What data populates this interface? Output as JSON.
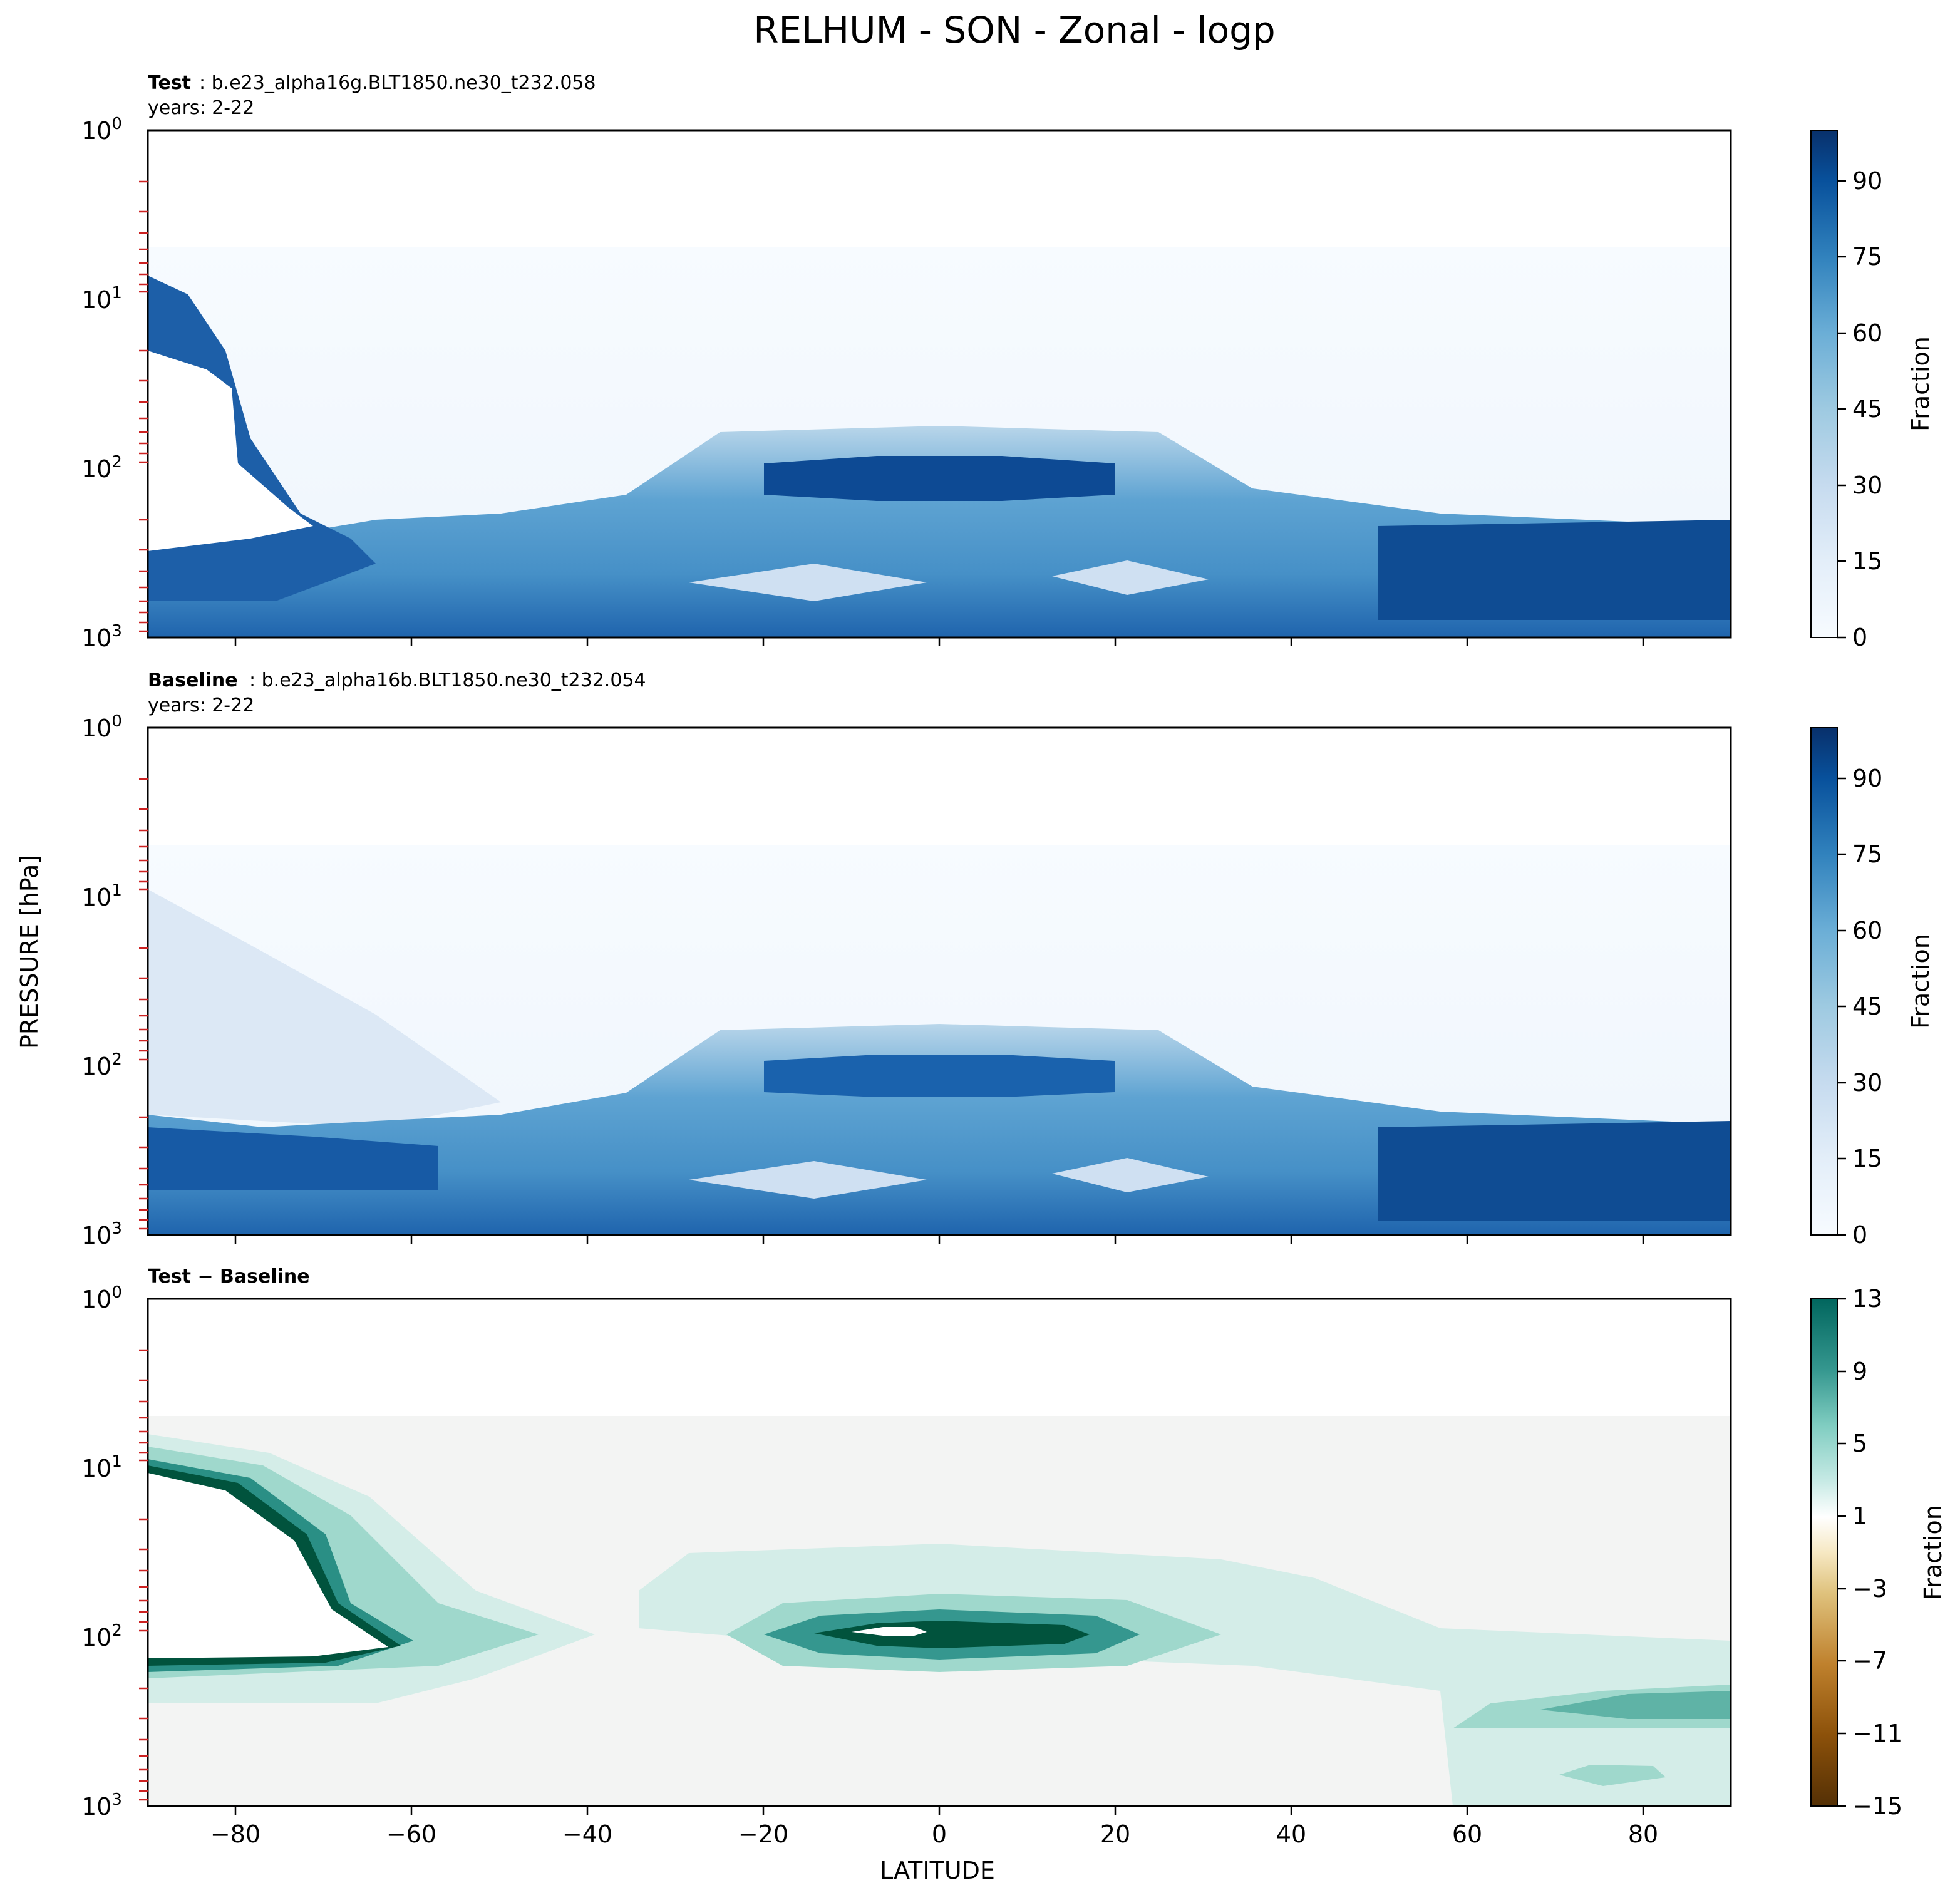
{
  "figure": {
    "title": "RELHUM - SON - Zonal - logp",
    "ylabel": "PRESSURE [hPa]",
    "xlabel": "LATITUDE"
  },
  "chart_data": [
    {
      "type": "heatmap",
      "panel": "test",
      "label_bold": "Test",
      "label_rest": ": b.e23_alpha16g.BLT1850.ne30_t232.058",
      "years": "years: 2-22",
      "xlim": [
        -90,
        90
      ],
      "ylim_hPa": [
        1000,
        1
      ],
      "y_scale": "log",
      "xticks": [
        "−80",
        "−60",
        "−40",
        "−20",
        "0",
        "20",
        "40",
        "60",
        "80"
      ],
      "yticks": [
        "10^0",
        "10^1",
        "10^2",
        "10^3"
      ],
      "colorbar": {
        "label": "Fraction",
        "ticks": [
          "0",
          "15",
          "30",
          "45",
          "60",
          "75",
          "90"
        ],
        "range": [
          0,
          100
        ],
        "colormap": "Blues"
      },
      "features": [
        {
          "desc": "stratosphere near-zero above ~50 hPa",
          "lat": [
            -90,
            90
          ],
          "p_hPa": [
            1,
            50
          ],
          "value": 2
        },
        {
          "desc": "upper tropical moist band",
          "lat": [
            -22,
            22
          ],
          "p_hPa": [
            80,
            130
          ],
          "value": 90
        },
        {
          "desc": "southern polar high values boundary",
          "lat": [
            -90,
            -62
          ],
          "p_hPa": [
            18,
            300
          ],
          "value": 95
        },
        {
          "desc": "southern polar masked region",
          "lat": [
            -90,
            -72
          ],
          "p_hPa": [
            20,
            310
          ],
          "value": null
        },
        {
          "desc": "northern polar lower-troposphere max",
          "lat": [
            60,
            90
          ],
          "p_hPa": [
            250,
            350
          ],
          "value": 95
        },
        {
          "desc": "subtropical dry lower-mid troposphere",
          "lat": [
            -30,
            -10
          ],
          "p_hPa": [
            350,
            600
          ],
          "value": 22
        }
      ]
    },
    {
      "type": "heatmap",
      "panel": "baseline",
      "label_bold": "Baseline",
      "label_rest": ": b.e23_alpha16b.BLT1850.ne30_t232.054",
      "years": "years: 2-22",
      "xlim": [
        -90,
        90
      ],
      "ylim_hPa": [
        1000,
        1
      ],
      "y_scale": "log",
      "xticks": [
        "−80",
        "−60",
        "−40",
        "−20",
        "0",
        "20",
        "40",
        "60",
        "80"
      ],
      "yticks": [
        "10^0",
        "10^1",
        "10^2",
        "10^3"
      ],
      "colorbar": {
        "label": "Fraction",
        "ticks": [
          "0",
          "15",
          "30",
          "45",
          "60",
          "75",
          "90"
        ],
        "range": [
          0,
          100
        ],
        "colormap": "Blues"
      },
      "features": [
        {
          "desc": "stratosphere near-zero above ~50 hPa",
          "lat": [
            -90,
            90
          ],
          "p_hPa": [
            1,
            50
          ],
          "value": 2
        },
        {
          "desc": "upper tropical moist band",
          "lat": [
            -22,
            22
          ],
          "p_hPa": [
            80,
            130
          ],
          "value": 80
        },
        {
          "desc": "southern polar lower troposphere",
          "lat": [
            -90,
            -60
          ],
          "p_hPa": [
            250,
            400
          ],
          "value": 90
        },
        {
          "desc": "northern polar lower-troposphere max",
          "lat": [
            60,
            90
          ],
          "p_hPa": [
            250,
            350
          ],
          "value": 95
        },
        {
          "desc": "subtropical dry lower-mid troposphere",
          "lat": [
            -30,
            -10
          ],
          "p_hPa": [
            350,
            600
          ],
          "value": 22
        }
      ]
    },
    {
      "type": "heatmap",
      "panel": "difference",
      "label_bold": "Test − Baseline",
      "xlim": [
        -90,
        90
      ],
      "ylim_hPa": [
        1000,
        1
      ],
      "y_scale": "log",
      "xticks": [
        "−80",
        "−60",
        "−40",
        "−20",
        "0",
        "20",
        "40",
        "60",
        "80"
      ],
      "yticks": [
        "10^0",
        "10^1",
        "10^2",
        "10^3"
      ],
      "colorbar": {
        "label": "Fraction",
        "ticks": [
          "−15",
          "−11",
          "−7",
          "−3",
          "1",
          "5",
          "9",
          "13"
        ],
        "range": [
          -15,
          13
        ],
        "colormap": "BrBG"
      },
      "features": [
        {
          "desc": "tropical upper troposphere increase",
          "lat": [
            -20,
            22
          ],
          "p_hPa": [
            90,
            110
          ],
          "value": 13
        },
        {
          "desc": "southern polar boundary increase",
          "lat": [
            -90,
            -60
          ],
          "p_hPa": [
            10,
            290
          ],
          "value": 12
        },
        {
          "desc": "northern polar lower troposphere increase",
          "lat": [
            62,
            90
          ],
          "p_hPa": [
            230,
            330
          ],
          "value": 6
        },
        {
          "desc": "northern polar near-surface increase",
          "lat": [
            70,
            82
          ],
          "p_hPa": [
            720,
            820
          ],
          "value": 4
        }
      ]
    }
  ]
}
